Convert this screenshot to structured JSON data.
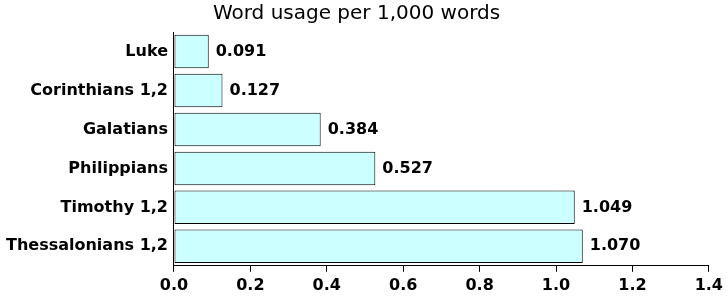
{
  "chart_data": {
    "type": "bar",
    "title": "Word usage per 1,000 words",
    "orientation": "horizontal",
    "categories": [
      "Luke",
      "Corinthians 1,2",
      "Galatians",
      "Philippians",
      "Timothy 1,2",
      "Thessalonians 1,2"
    ],
    "values": [
      0.091,
      0.127,
      0.384,
      0.527,
      1.049,
      1.07
    ],
    "value_labels": [
      "0.091",
      "0.127",
      "0.384",
      "0.527",
      "1.049",
      "1.070"
    ],
    "data_labels": true,
    "color": "#ccffff",
    "xlim": [
      0,
      1.4
    ],
    "xticks": [
      {
        "value": 0,
        "label": "0.0"
      },
      0.2,
      0.4,
      0.6,
      0.8,
      {
        "value": 1,
        "label": "1.0"
      },
      1.2,
      1.4
    ],
    "grid": false
  }
}
